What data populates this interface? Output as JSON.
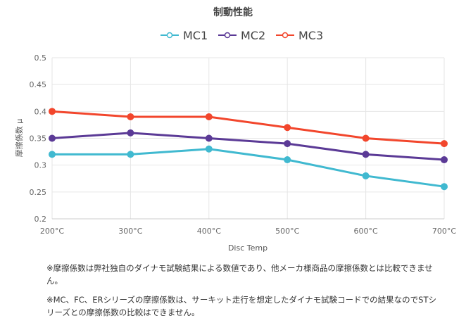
{
  "chart_data": {
    "type": "line",
    "title": "制動性能",
    "xlabel": "Disc Temp",
    "ylabel": "摩擦係数 μ",
    "categories": [
      "200°C",
      "300°C",
      "400°C",
      "500°C",
      "600°C",
      "700°C"
    ],
    "ylim": [
      0.2,
      0.5
    ],
    "yticks": [
      "0.2",
      "0.25",
      "0.3",
      "0.35",
      "0.4",
      "0.45",
      "0.5"
    ],
    "grid": true,
    "legend_position": "top-center",
    "series": [
      {
        "name": "MC1",
        "color": "#40b9d0",
        "values": [
          0.32,
          0.32,
          0.33,
          0.31,
          0.28,
          0.26
        ]
      },
      {
        "name": "MC2",
        "color": "#5b3a96",
        "values": [
          0.35,
          0.36,
          0.35,
          0.34,
          0.32,
          0.31
        ]
      },
      {
        "name": "MC3",
        "color": "#f2462c",
        "values": [
          0.4,
          0.39,
          0.39,
          0.37,
          0.35,
          0.34
        ]
      }
    ]
  },
  "notes": [
    "※摩擦係数は弊社独自のダイナモ試験結果による数値であり、他メーカ様商品の摩擦係数とは比較できません。",
    "※MC、FC、ERシリーズの摩擦係数は、サーキット走行を想定したダイナモ試験コードでの結果なのでSTシリーズとの摩擦係数の比較はできません。"
  ]
}
